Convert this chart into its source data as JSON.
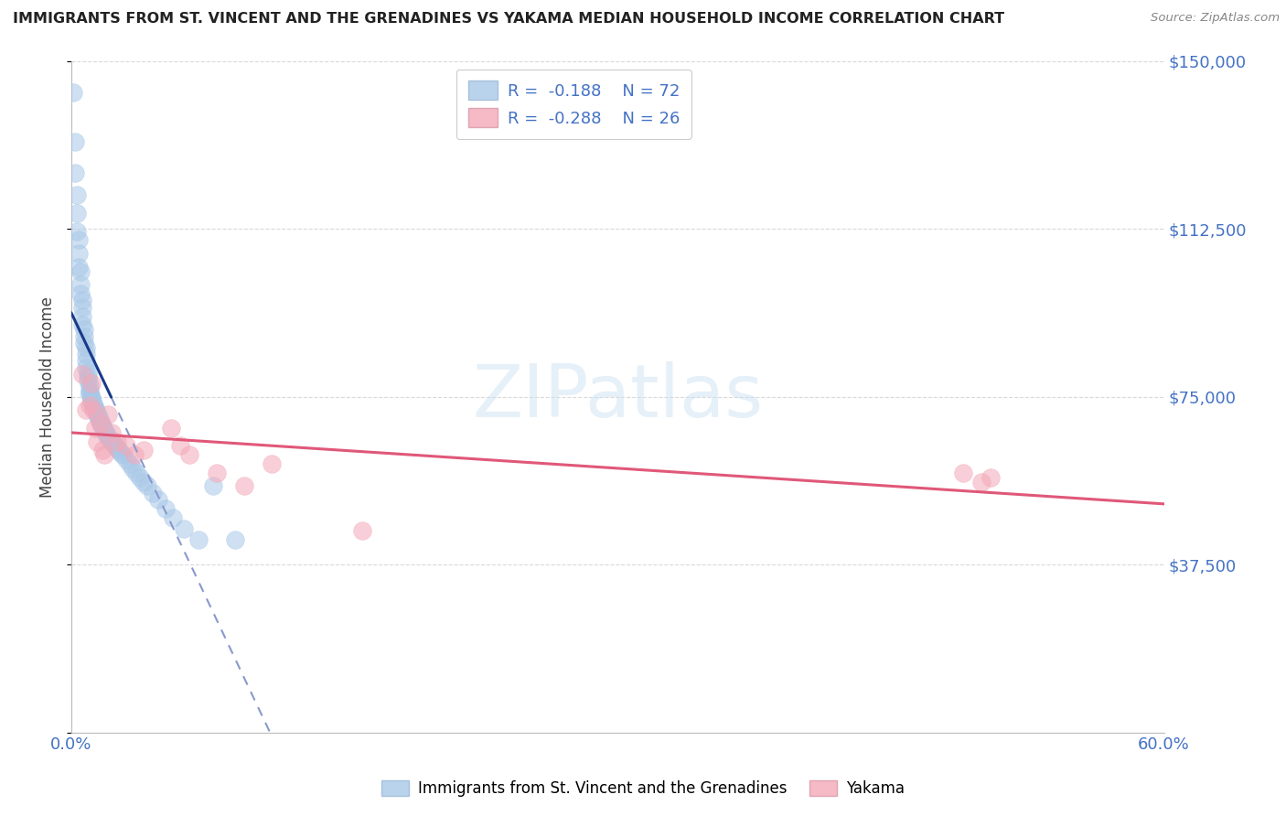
{
  "title": "IMMIGRANTS FROM ST. VINCENT AND THE GRENADINES VS YAKAMA MEDIAN HOUSEHOLD INCOME CORRELATION CHART",
  "source": "Source: ZipAtlas.com",
  "ylabel": "Median Household Income",
  "xlim": [
    0.0,
    0.6
  ],
  "ylim": [
    0,
    150000
  ],
  "yticks": [
    0,
    37500,
    75000,
    112500,
    150000
  ],
  "ytick_labels": [
    "",
    "$37,500",
    "$75,000",
    "$112,500",
    "$150,000"
  ],
  "xticks": [
    0.0,
    0.6
  ],
  "xtick_labels": [
    "0.0%",
    "60.0%"
  ],
  "blue_R": "-0.188",
  "blue_N": "72",
  "pink_R": "-0.288",
  "pink_N": "26",
  "blue_label": "Immigrants from St. Vincent and the Grenadines",
  "pink_label": "Yakama",
  "blue_color": "#a8c8e8",
  "pink_color": "#f4a8b8",
  "legend_text_color": "#4472c4",
  "blue_scatter": {
    "x": [
      0.001,
      0.002,
      0.002,
      0.003,
      0.003,
      0.003,
      0.004,
      0.004,
      0.004,
      0.005,
      0.005,
      0.005,
      0.006,
      0.006,
      0.006,
      0.006,
      0.007,
      0.007,
      0.007,
      0.008,
      0.008,
      0.008,
      0.008,
      0.009,
      0.009,
      0.009,
      0.01,
      0.01,
      0.01,
      0.01,
      0.011,
      0.011,
      0.011,
      0.012,
      0.012,
      0.013,
      0.013,
      0.014,
      0.014,
      0.015,
      0.015,
      0.016,
      0.016,
      0.017,
      0.017,
      0.018,
      0.019,
      0.019,
      0.02,
      0.021,
      0.022,
      0.023,
      0.024,
      0.025,
      0.026,
      0.027,
      0.028,
      0.03,
      0.032,
      0.034,
      0.036,
      0.038,
      0.04,
      0.042,
      0.045,
      0.048,
      0.052,
      0.056,
      0.062,
      0.07,
      0.078,
      0.09
    ],
    "y": [
      143000,
      132000,
      125000,
      120000,
      116000,
      112000,
      110000,
      107000,
      104000,
      103000,
      100000,
      98000,
      96500,
      95000,
      93000,
      91000,
      90000,
      88500,
      87000,
      86000,
      84500,
      83000,
      81500,
      80500,
      79500,
      78500,
      77500,
      76500,
      76000,
      75500,
      75000,
      74500,
      74000,
      73500,
      73000,
      72500,
      72000,
      71500,
      71000,
      70500,
      70000,
      69500,
      69000,
      68500,
      68000,
      67500,
      67000,
      66500,
      66000,
      65500,
      65000,
      64500,
      64000,
      63500,
      63000,
      62500,
      62000,
      61000,
      60000,
      59000,
      58000,
      57000,
      56000,
      55000,
      53500,
      52000,
      50000,
      48000,
      45500,
      43000,
      55000,
      43000
    ]
  },
  "pink_scatter": {
    "x": [
      0.006,
      0.008,
      0.01,
      0.011,
      0.012,
      0.013,
      0.014,
      0.016,
      0.017,
      0.018,
      0.02,
      0.022,
      0.025,
      0.03,
      0.035,
      0.04,
      0.055,
      0.06,
      0.065,
      0.08,
      0.095,
      0.11,
      0.16,
      0.49,
      0.5,
      0.505
    ],
    "y": [
      80000,
      72000,
      73000,
      78000,
      72000,
      68000,
      65000,
      69000,
      63000,
      62000,
      71000,
      67000,
      65000,
      64000,
      62000,
      63000,
      68000,
      64000,
      62000,
      58000,
      55000,
      60000,
      45000,
      58000,
      56000,
      57000
    ]
  },
  "background_color": "#ffffff",
  "grid_color": "#d0d0d0",
  "title_color": "#222222",
  "axis_label_color": "#4472c4",
  "blue_line_solid_color": "#1a3a8a",
  "blue_line_dash_color": "#8899cc",
  "pink_line_color": "#e05878"
}
